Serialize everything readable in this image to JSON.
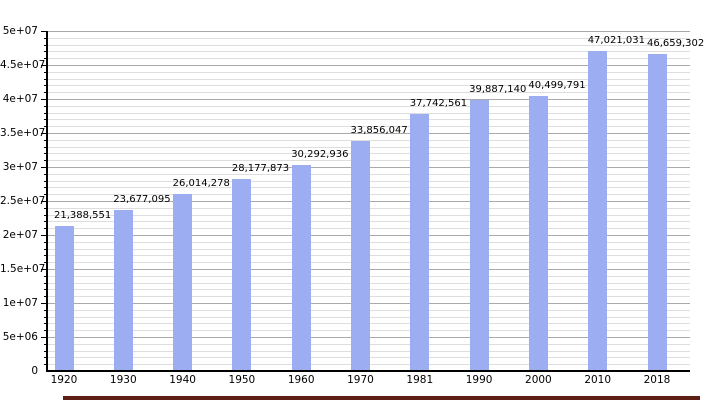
{
  "chart_data": {
    "type": "bar",
    "title": "",
    "xlabel": "",
    "ylabel": "",
    "categories": [
      "1920",
      "1930",
      "1940",
      "1950",
      "1960",
      "1970",
      "1981",
      "1990",
      "2000",
      "2010",
      "2018"
    ],
    "values": [
      21388551,
      23677095,
      26014278,
      28177873,
      30292936,
      33856047,
      37742561,
      39887140,
      40499791,
      47021031,
      46659302
    ],
    "value_labels": [
      "21,388,551",
      "23,677,095",
      "26,014,278",
      "28,177,873",
      "30,292,936",
      "33,856,047",
      "37,742,561",
      "39,887,140",
      "40,499,791",
      "47,021,031",
      "46,659,302"
    ],
    "ylim": [
      0,
      50000000
    ],
    "y_major_step": 5000000,
    "y_minor_step": 1000000,
    "y_tick_labels": [
      "0",
      "5e+06",
      "1e+07",
      "1.5e+07",
      "2e+07",
      "2.5e+07",
      "3e+07",
      "3.5e+07",
      "4e+07",
      "4.5e+07",
      "5e+07"
    ],
    "grid": true,
    "legend": false,
    "bar_color": "#9dadf2",
    "major_grid_color": "#aaaaaa",
    "minor_grid_color": "#dedede",
    "axis_color": "#000000",
    "text_color": "#000000"
  },
  "footer_strip": {
    "color": "#5e2014"
  }
}
